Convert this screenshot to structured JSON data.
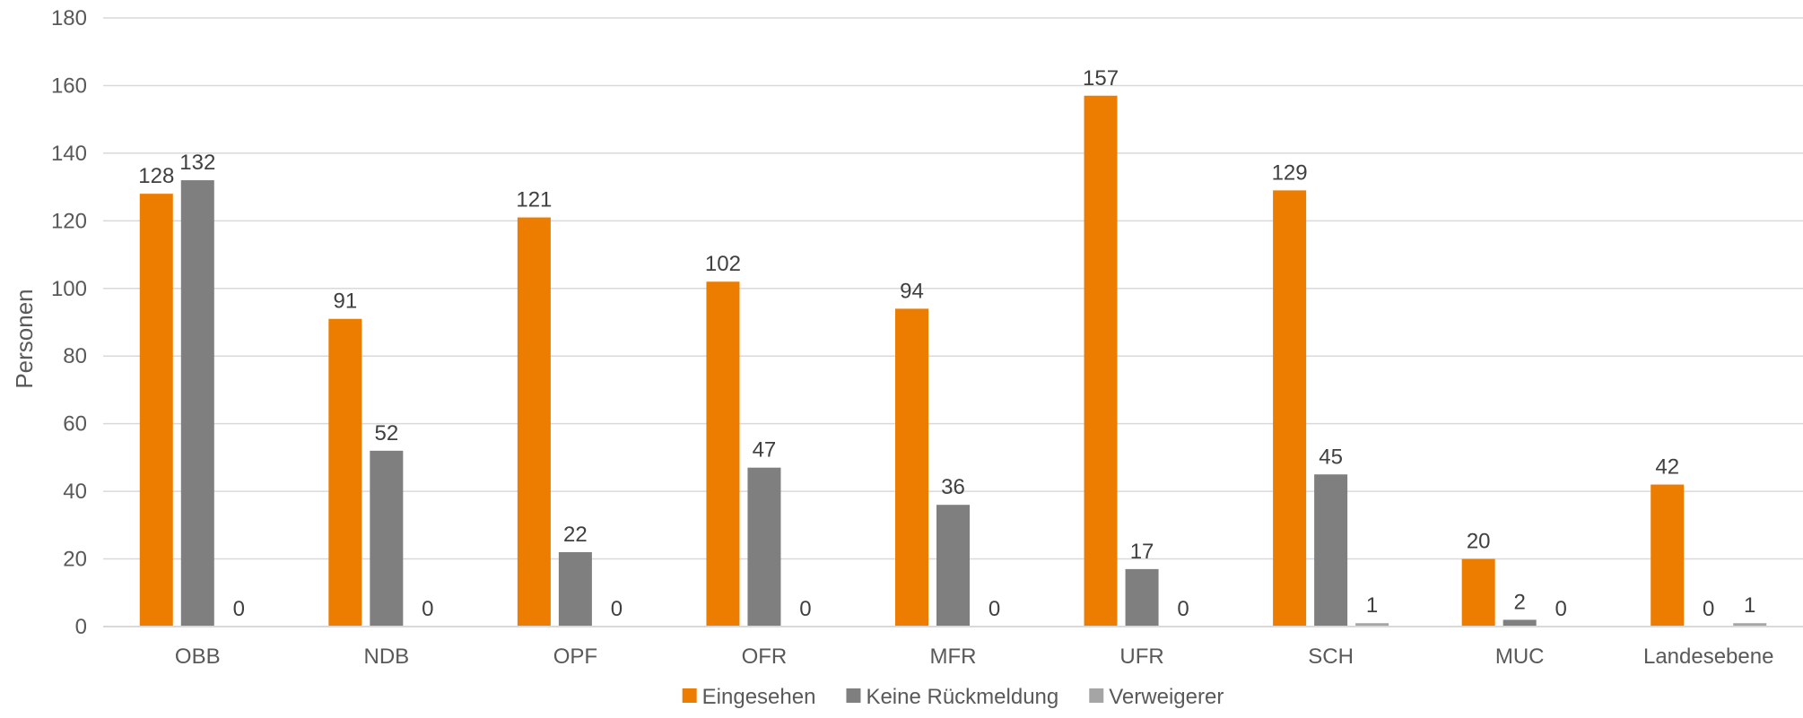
{
  "chart_data": {
    "type": "bar",
    "title": "",
    "xlabel": "",
    "ylabel": "Personen",
    "ylim": [
      0,
      180
    ],
    "y_ticks": [
      0,
      20,
      40,
      60,
      80,
      100,
      120,
      140,
      160,
      180
    ],
    "grid": true,
    "legend_position": "bottom",
    "categories": [
      "OBB",
      "NDB",
      "OPF",
      "OFR",
      "MFR",
      "UFR",
      "SCH",
      "MUC",
      "Landesebene"
    ],
    "series": [
      {
        "name": "Eingesehen",
        "color": "#ED7D00",
        "values": [
          128,
          91,
          121,
          102,
          94,
          157,
          129,
          20,
          42
        ]
      },
      {
        "name": "Keine Rückmeldung",
        "color": "#7F7F7F",
        "values": [
          132,
          52,
          22,
          47,
          36,
          17,
          45,
          2,
          0
        ]
      },
      {
        "name": "Verweigerer",
        "color": "#A5A5A5",
        "values": [
          0,
          0,
          0,
          0,
          0,
          0,
          1,
          0,
          1
        ]
      }
    ]
  }
}
